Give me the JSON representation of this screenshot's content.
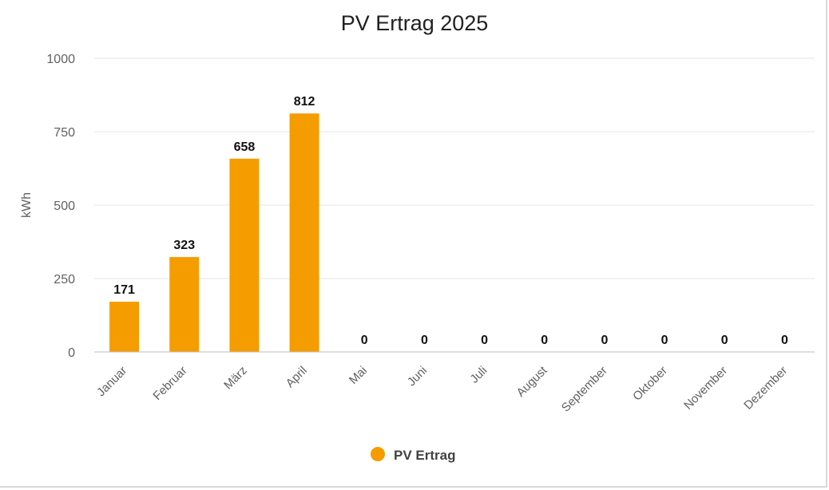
{
  "chart_data": {
    "type": "bar",
    "title": "PV Ertrag 2025",
    "xlabel": "",
    "ylabel": "kWh",
    "ylim": [
      0,
      1000
    ],
    "yticks": [
      0,
      250,
      500,
      750,
      1000
    ],
    "grid": true,
    "legend_position": "bottom",
    "categories": [
      "Januar",
      "Februar",
      "März",
      "April",
      "Mai",
      "Juni",
      "Juli",
      "August",
      "September",
      "Oktober",
      "November",
      "Dezember"
    ],
    "series": [
      {
        "name": "PV Ertrag",
        "color": "#f59c00",
        "values": [
          171,
          323,
          658,
          812,
          0,
          0,
          0,
          0,
          0,
          0,
          0,
          0
        ]
      }
    ]
  }
}
